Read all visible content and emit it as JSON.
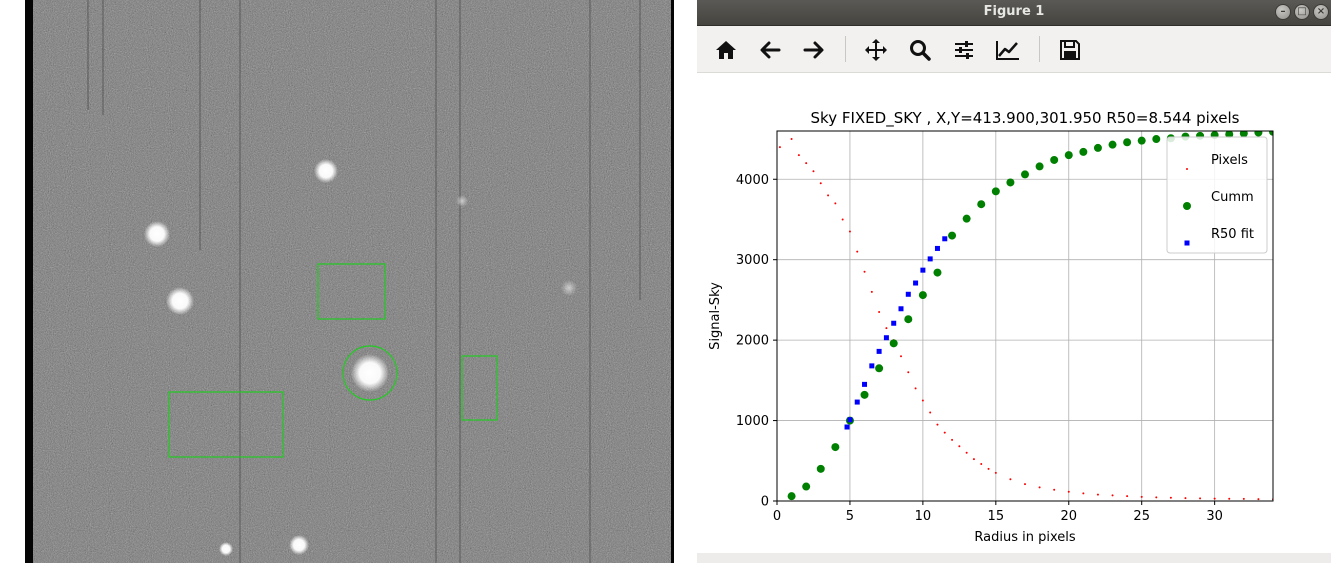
{
  "window": {
    "title": "Figure 1"
  },
  "toolbar": {
    "buttons": [
      {
        "name": "home-button",
        "icon": "home-icon"
      },
      {
        "name": "back-button",
        "icon": "arrow-left-icon"
      },
      {
        "name": "forward-button",
        "icon": "arrow-right-icon"
      },
      {
        "name": "pan-button",
        "icon": "move-icon"
      },
      {
        "name": "zoom-button",
        "icon": "magnifier-icon"
      },
      {
        "name": "configure-subplots-button",
        "icon": "sliders-icon"
      },
      {
        "name": "edit-axis-button",
        "icon": "line-chart-icon"
      },
      {
        "name": "save-button",
        "icon": "floppy-disk-icon"
      }
    ]
  },
  "chart_data": {
    "type": "scatter",
    "title": "Sky FIXED_SKY , X,Y=413.900,301.950 R50=8.544 pixels",
    "xlabel": "Radius in pixels",
    "ylabel": "Signal-Sky",
    "xlim": [
      0,
      34
    ],
    "ylim": [
      0,
      4600
    ],
    "xticks": [
      0,
      5,
      10,
      15,
      20,
      25,
      30
    ],
    "yticks": [
      0,
      1000,
      2000,
      3000,
      4000
    ],
    "grid": true,
    "legend_position": "top-right",
    "series": [
      {
        "name": "Pixels",
        "marker": "small-dot",
        "color": "#ff0000",
        "x": [
          0.2,
          1.0,
          1.5,
          2.0,
          2.5,
          3.0,
          3.5,
          4.0,
          4.5,
          5.0,
          5.5,
          6.0,
          6.5,
          7.0,
          7.5,
          8.0,
          8.5,
          9.0,
          9.5,
          10.0,
          10.5,
          11.0,
          11.5,
          12.0,
          12.5,
          13.0,
          13.5,
          14.0,
          14.5,
          15.0,
          16.0,
          17.0,
          18.0,
          19.0,
          20.0,
          21.0,
          22.0,
          23.0,
          24.0,
          25.0,
          26.0,
          27.0,
          28.0,
          29.0,
          30.0,
          31.0,
          32.0,
          33.0,
          34.0
        ],
        "y": [
          4400,
          4500,
          4300,
          4200,
          4100,
          3950,
          3800,
          3700,
          3500,
          3350,
          3100,
          2850,
          2600,
          2350,
          2150,
          2000,
          1800,
          1600,
          1400,
          1250,
          1100,
          950,
          850,
          760,
          680,
          600,
          520,
          460,
          400,
          350,
          270,
          210,
          170,
          140,
          115,
          95,
          80,
          70,
          60,
          52,
          45,
          40,
          36,
          32,
          30,
          28,
          26,
          24,
          22
        ]
      },
      {
        "name": "Cumm",
        "marker": "circle",
        "color": "#008000",
        "x": [
          1,
          2,
          3,
          4,
          5,
          6,
          7,
          8,
          9,
          10,
          11,
          12,
          13,
          14,
          15,
          16,
          17,
          18,
          19,
          20,
          21,
          22,
          23,
          24,
          25,
          26,
          27,
          28,
          29,
          30,
          31,
          32,
          33,
          34
        ],
        "y": [
          60,
          180,
          400,
          670,
          1000,
          1320,
          1650,
          1960,
          2260,
          2560,
          2840,
          3300,
          3510,
          3690,
          3850,
          3960,
          4060,
          4160,
          4240,
          4300,
          4340,
          4390,
          4430,
          4460,
          4480,
          4500,
          4510,
          4530,
          4540,
          4550,
          4560,
          4570,
          4580,
          4590
        ]
      },
      {
        "name": "R50 fit",
        "marker": "square",
        "color": "#0000ff",
        "x": [
          4.8,
          5.0,
          5.5,
          6.0,
          6.5,
          7.0,
          7.5,
          8.0,
          8.5,
          9.0,
          9.5,
          10.0,
          10.5,
          11.0,
          11.5
        ],
        "y": [
          920,
          1010,
          1230,
          1450,
          1680,
          1860,
          2030,
          2210,
          2390,
          2570,
          2710,
          2870,
          3010,
          3140,
          3260
        ]
      }
    ]
  },
  "image_view": {
    "apertures": [
      {
        "shape": "circle",
        "label": ""
      },
      {
        "shape": "rect",
        "label": ""
      },
      {
        "shape": "rect",
        "label": ""
      },
      {
        "shape": "rect",
        "label": ""
      }
    ],
    "aperture_color": "#22cc22"
  }
}
